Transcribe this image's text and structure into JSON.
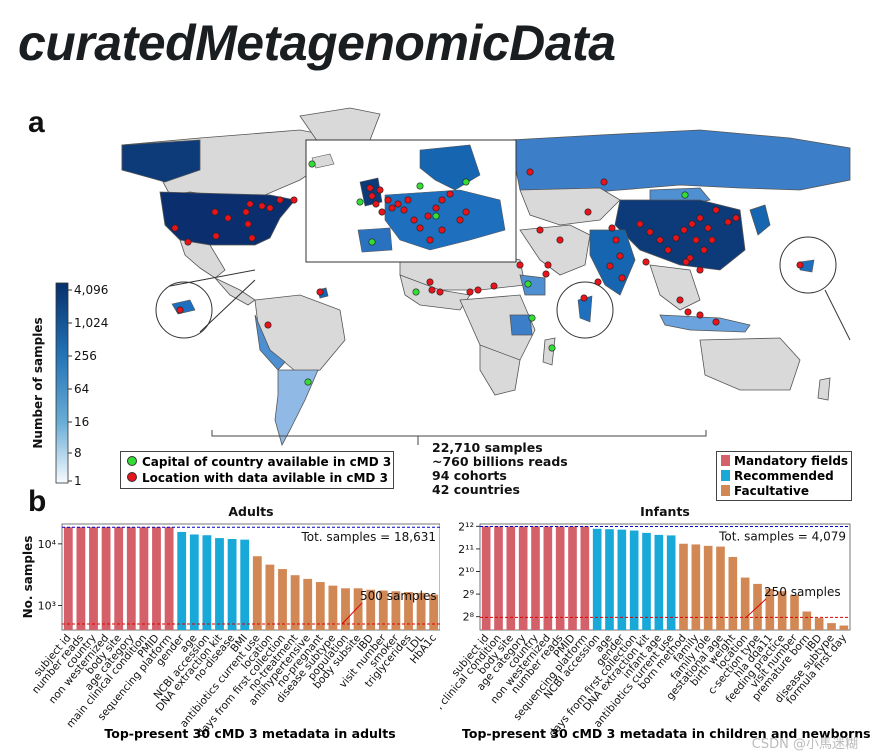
{
  "page": {
    "title": "curatedMetagenomicData",
    "panel_a_label": "a",
    "panel_b_label": "b",
    "watermark": "CSDN @小馬迷糊"
  },
  "colors": {
    "mandatory": "#d4606a",
    "recommended": "#18a9d9",
    "facultative": "#d28855",
    "dot_red": "#e8131b",
    "dot_green": "#33dd33",
    "land_none": "#d9d9d9",
    "ocean_line": "#555555"
  },
  "map": {
    "colorbar_label": "Number of samples",
    "colorbar_ticks": [
      "4,096",
      "1,024",
      "256",
      "64",
      "16",
      "8",
      "1"
    ],
    "legend_items": [
      {
        "label": "Capital of country available in cMD 3",
        "color": "#33dd33"
      },
      {
        "label": "Location with data avilable in cMD 3",
        "color": "#e8131b"
      }
    ],
    "stats": [
      "22,710 samples",
      "~760 billions reads",
      "94 cohorts",
      "42 countries"
    ],
    "field_legend": [
      {
        "label": "Mandatory fields",
        "color": "#d4606a"
      },
      {
        "label": "Recommended",
        "color": "#18a9d9"
      },
      {
        "label": "Facultative",
        "color": "#d28855"
      }
    ]
  },
  "chart_data": [
    {
      "type": "bar",
      "title": "Adults",
      "xlabel": "Top-present 30 cMD 3 metadata in adults",
      "ylabel": "No. samples",
      "yscale": "log10",
      "ylim": [
        400,
        21000
      ],
      "yticks": [
        {
          "value": 1000,
          "label": "10³"
        },
        {
          "value": 10000,
          "label": "10⁴"
        }
      ],
      "reference_lines": [
        {
          "value": 18631,
          "label": "Tot. samples = 18,631",
          "color": "#0000cc"
        },
        {
          "value": 500,
          "label": "500 samples",
          "color": "#dd0000"
        }
      ],
      "categories": [
        "subject id",
        "number reads",
        "country",
        "non westernized",
        "body site",
        "age category",
        "main clinical condition",
        "PMID",
        "sequencing platform",
        "gender",
        "age",
        "NCBI accession",
        "DNA extraction kit",
        "no-disease",
        "BMI",
        "antibiotics current use",
        "location",
        "days from first collection",
        "no-treatment",
        "antihypertensive",
        "no-pregnant",
        "disease subtype",
        "population",
        "body subsite",
        "IBD",
        "visit number",
        "smoker",
        "triglycerides",
        "LDL",
        "HbA1c"
      ],
      "groups": [
        "mandatory",
        "mandatory",
        "mandatory",
        "mandatory",
        "mandatory",
        "mandatory",
        "mandatory",
        "mandatory",
        "mandatory",
        "recommended",
        "recommended",
        "recommended",
        "recommended",
        "recommended",
        "recommended",
        "facultative",
        "facultative",
        "facultative",
        "facultative",
        "facultative",
        "facultative",
        "facultative",
        "facultative",
        "facultative",
        "facultative",
        "facultative",
        "facultative",
        "facultative",
        "facultative",
        "facultative"
      ],
      "values": [
        18631,
        18631,
        18631,
        18631,
        18631,
        18631,
        18631,
        18631,
        18631,
        15600,
        14200,
        13800,
        12400,
        12000,
        11700,
        6300,
        4600,
        3900,
        3100,
        2700,
        2400,
        2100,
        1900,
        1900,
        1800,
        1750,
        1700,
        1650,
        1600,
        1500
      ]
    },
    {
      "type": "bar",
      "title": "Infants",
      "xlabel": "Top-present 30 cMD 3 metadata in children and newborns",
      "ylabel": "",
      "yscale": "log2",
      "ylim": [
        170,
        4400
      ],
      "yticks": [
        {
          "value": 256,
          "label": "2⁸"
        },
        {
          "value": 512,
          "label": "2⁹"
        },
        {
          "value": 1024,
          "label": "2¹⁰"
        },
        {
          "value": 2048,
          "label": "2¹¹"
        },
        {
          "value": 4096,
          "label": "2¹²"
        }
      ],
      "reference_lines": [
        {
          "value": 4079,
          "label": "Tot. samples = 4,079",
          "color": "#0000cc"
        },
        {
          "value": 250,
          "label": "250 samples",
          "color": "#dd0000"
        }
      ],
      "categories": [
        "subject id",
        "main clinical condition",
        "body site",
        "age category",
        "country",
        "non westernized",
        "number reads",
        "PMID",
        "sequencing platform",
        "NCBI accession",
        "age",
        "gender",
        "days from first collection",
        "DNA extraction kit",
        "infant age",
        "antibiotics current use",
        "born method",
        "family",
        "family role",
        "gestational age",
        "birth weight",
        "location",
        "c-section type",
        "hla dqa11",
        "feeding practice",
        "visit number",
        "premature born",
        "IBD",
        "disease subtype",
        "formula first day"
      ],
      "groups": [
        "mandatory",
        "mandatory",
        "mandatory",
        "mandatory",
        "mandatory",
        "mandatory",
        "mandatory",
        "mandatory",
        "mandatory",
        "recommended",
        "recommended",
        "recommended",
        "recommended",
        "recommended",
        "recommended",
        "recommended",
        "facultative",
        "facultative",
        "facultative",
        "facultative",
        "facultative",
        "facultative",
        "facultative",
        "facultative",
        "facultative",
        "facultative",
        "facultative",
        "facultative",
        "facultative",
        "facultative"
      ],
      "values": [
        4079,
        4079,
        4079,
        4079,
        4079,
        4079,
        4079,
        4079,
        4079,
        3800,
        3750,
        3700,
        3600,
        3350,
        3150,
        3100,
        2400,
        2350,
        2250,
        2200,
        1600,
        850,
        700,
        600,
        560,
        500,
        300,
        245,
        210,
        195
      ]
    }
  ]
}
